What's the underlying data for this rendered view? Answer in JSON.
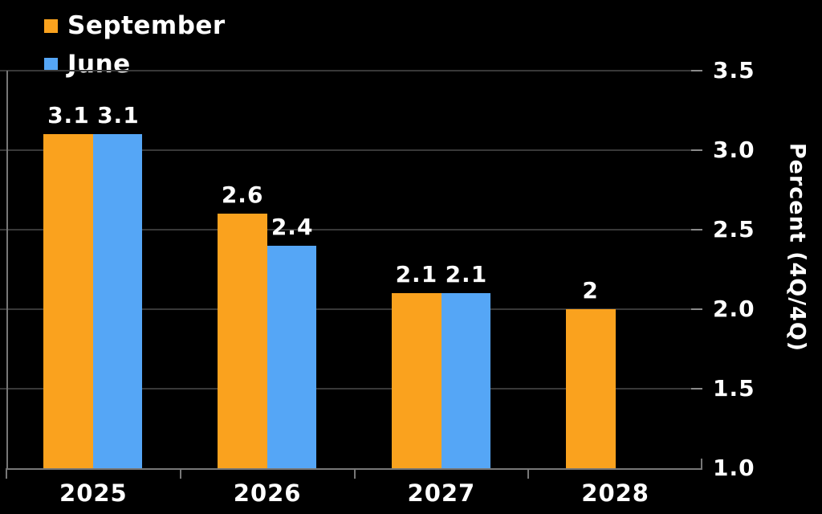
{
  "chart_data": {
    "type": "bar",
    "title": "",
    "categories": [
      "2025",
      "2026",
      "2027",
      "2028"
    ],
    "series": [
      {
        "name": "September",
        "color": "#FAA21E",
        "values": [
          3.1,
          2.6,
          2.1,
          2.0
        ],
        "labels": [
          "3.1",
          "2.6",
          "2.1",
          "2"
        ]
      },
      {
        "name": "June",
        "color": "#55A6F6",
        "values": [
          3.1,
          2.4,
          2.1,
          null
        ],
        "labels": [
          "3.1",
          "2.4",
          "2.1",
          null
        ]
      }
    ],
    "xlabel": "",
    "ylabel": "Percent (4Q/4Q)",
    "yticks": [
      1.0,
      1.5,
      2.0,
      2.5,
      3.0,
      3.5
    ],
    "ytick_labels": [
      "1.0",
      "1.5",
      "2.0",
      "2.5",
      "3.0",
      "3.5"
    ],
    "ylim": [
      1.0,
      3.5
    ],
    "grid": true,
    "legend_position": "top-left",
    "colors": {
      "background": "#000000",
      "text": "#FFFFFF",
      "gridline": "#383838",
      "axis": "#777777"
    }
  }
}
